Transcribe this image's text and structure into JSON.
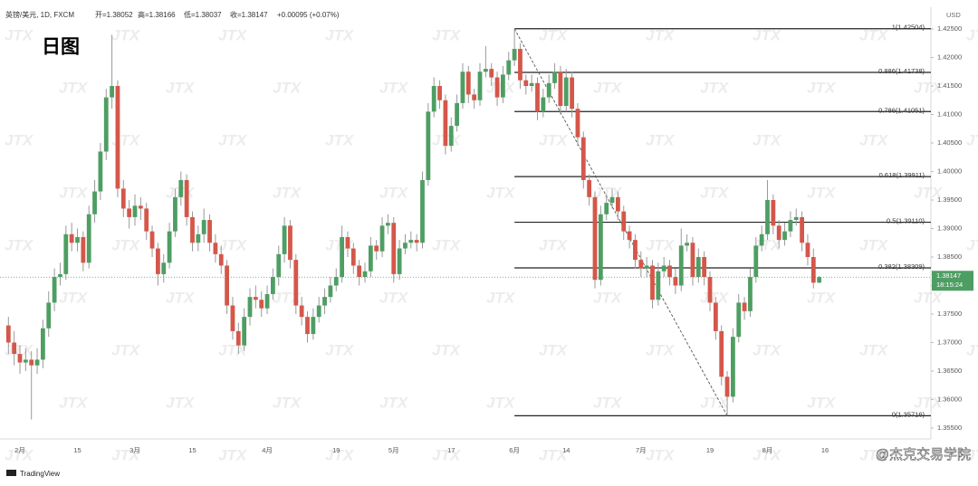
{
  "chart_data": {
    "type": "candlestick",
    "title": "日图",
    "header": {
      "symbol": "英镑/美元, 1D, FXCM",
      "open": "开=1.38052",
      "high": "高=1.38166",
      "low": "低=1.38037",
      "close": "收=1.38147",
      "change": "+0.00095 (+0.07%)"
    },
    "currency": "USD",
    "countdown": "18:15:24",
    "watermark": "JTX",
    "brand": "TradingView",
    "credit": "@杰克交易学院",
    "up_color": "#4e9e63",
    "down_color": "#d4574a",
    "ylim": [
      1.355,
      1.425
    ],
    "yticks": [
      {
        "value": 1.425,
        "label": "1.42500"
      },
      {
        "value": 1.42,
        "label": "1.42000"
      },
      {
        "value": 1.415,
        "label": "1.41500"
      },
      {
        "value": 1.41,
        "label": "1.41000"
      },
      {
        "value": 1.405,
        "label": "1.40500"
      },
      {
        "value": 1.4,
        "label": "1.40000"
      },
      {
        "value": 1.395,
        "label": "1.39500"
      },
      {
        "value": 1.39,
        "label": "1.39000"
      },
      {
        "value": 1.385,
        "label": "1.38500"
      },
      {
        "value": 1.38,
        "label": "1.38000"
      },
      {
        "value": 1.375,
        "label": "1.37500"
      },
      {
        "value": 1.37,
        "label": "1.37000"
      },
      {
        "value": 1.365,
        "label": "1.36500"
      },
      {
        "value": 1.36,
        "label": "1.36000"
      },
      {
        "value": 1.355,
        "label": "1.35500"
      }
    ],
    "fib_levels": [
      {
        "label": "1(1.42504)",
        "value": 1.42504
      },
      {
        "label": "0.886(1.41738)",
        "value": 1.41738
      },
      {
        "label": "0.786(1.41051)",
        "value": 1.41051
      },
      {
        "label": "0.618(1.39911)",
        "value": 1.39911
      },
      {
        "label": "0.5(1.39110)",
        "value": 1.3911
      },
      {
        "label": "0.382(1.38309)",
        "value": 1.38309
      },
      {
        "label": "0(1.35716)",
        "value": 1.35716
      }
    ],
    "categories": [
      null,
      null,
      "2月",
      null,
      null,
      null,
      null,
      null,
      null,
      null,
      null,
      null,
      "15",
      null,
      null,
      null,
      null,
      null,
      null,
      null,
      null,
      null,
      "3月",
      null,
      null,
      null,
      null,
      null,
      null,
      null,
      null,
      null,
      "15",
      null,
      null,
      null,
      null,
      null,
      null,
      null,
      null,
      null,
      null,
      null,
      null,
      "4月",
      null,
      null,
      null,
      null,
      null,
      null,
      null,
      null,
      null,
      null,
      null,
      "19",
      null,
      null,
      null,
      null,
      null,
      null,
      null,
      null,
      null,
      "5月",
      null,
      null,
      null,
      null,
      null,
      null,
      null,
      null,
      null,
      "17",
      null,
      null,
      null,
      null,
      null,
      null,
      null,
      null,
      null,
      null,
      "6月",
      null,
      null,
      null,
      null,
      null,
      null,
      null,
      null,
      "14",
      null,
      null,
      null,
      null,
      null,
      null,
      null,
      null,
      null,
      null,
      null,
      null,
      "7月",
      null,
      null,
      null,
      null,
      null,
      null,
      null,
      null,
      null,
      null,
      null,
      "19",
      null,
      null,
      null,
      null,
      null,
      null,
      null,
      null,
      null,
      "8月",
      null,
      null,
      null,
      null,
      null,
      null,
      null,
      null,
      null,
      "16"
    ],
    "candles": [
      [
        1.373,
        1.3745,
        1.368,
        1.37
      ],
      [
        1.37,
        1.372,
        1.366,
        1.368
      ],
      [
        1.368,
        1.3695,
        1.3645,
        1.3665
      ],
      [
        1.3665,
        1.369,
        1.365,
        1.367
      ],
      [
        1.367,
        1.3685,
        1.3565,
        1.366
      ],
      [
        1.366,
        1.369,
        1.3645,
        1.367
      ],
      [
        1.367,
        1.374,
        1.3655,
        1.3725
      ],
      [
        1.3725,
        1.379,
        1.371,
        1.377
      ],
      [
        1.377,
        1.383,
        1.3755,
        1.3815
      ],
      [
        1.3815,
        1.384,
        1.38,
        1.382
      ],
      [
        1.382,
        1.3905,
        1.381,
        1.389
      ],
      [
        1.389,
        1.391,
        1.386,
        1.3875
      ],
      [
        1.3875,
        1.39,
        1.386,
        1.3885
      ],
      [
        1.3885,
        1.3895,
        1.3825,
        1.384
      ],
      [
        1.384,
        1.394,
        1.383,
        1.3925
      ],
      [
        1.3925,
        1.3985,
        1.391,
        1.3965
      ],
      [
        1.3965,
        1.405,
        1.395,
        1.4035
      ],
      [
        1.4035,
        1.4145,
        1.402,
        1.413
      ],
      [
        1.413,
        1.424,
        1.411,
        1.415
      ],
      [
        1.415,
        1.416,
        1.3955,
        1.397
      ],
      [
        1.397,
        1.3985,
        1.392,
        1.3935
      ],
      [
        1.3935,
        1.395,
        1.39,
        1.392
      ],
      [
        1.392,
        1.396,
        1.3905,
        1.394
      ],
      [
        1.394,
        1.3955,
        1.3915,
        1.3935
      ],
      [
        1.3935,
        1.3945,
        1.388,
        1.3895
      ],
      [
        1.3895,
        1.3905,
        1.385,
        1.3865
      ],
      [
        1.3865,
        1.3875,
        1.38,
        1.382
      ],
      [
        1.382,
        1.3855,
        1.3805,
        1.384
      ],
      [
        1.384,
        1.391,
        1.383,
        1.3895
      ],
      [
        1.3895,
        1.397,
        1.3885,
        1.3955
      ],
      [
        1.3955,
        1.4,
        1.394,
        1.3985
      ],
      [
        1.3985,
        1.3995,
        1.3905,
        1.392
      ],
      [
        1.392,
        1.393,
        1.386,
        1.3875
      ],
      [
        1.3875,
        1.3905,
        1.386,
        1.389
      ],
      [
        1.389,
        1.3935,
        1.3875,
        1.3915
      ],
      [
        1.3915,
        1.3925,
        1.386,
        1.3875
      ],
      [
        1.3875,
        1.389,
        1.384,
        1.3855
      ],
      [
        1.3855,
        1.387,
        1.382,
        1.3835
      ],
      [
        1.3835,
        1.3845,
        1.375,
        1.3765
      ],
      [
        1.3765,
        1.378,
        1.3705,
        1.372
      ],
      [
        1.372,
        1.3735,
        1.368,
        1.3695
      ],
      [
        1.3695,
        1.376,
        1.3685,
        1.3745
      ],
      [
        1.3745,
        1.3795,
        1.373,
        1.378
      ],
      [
        1.378,
        1.38,
        1.376,
        1.3775
      ],
      [
        1.3775,
        1.379,
        1.3745,
        1.376
      ],
      [
        1.376,
        1.38,
        1.375,
        1.3785
      ],
      [
        1.3785,
        1.383,
        1.3775,
        1.3815
      ],
      [
        1.3815,
        1.387,
        1.38,
        1.3855
      ],
      [
        1.3855,
        1.392,
        1.384,
        1.3905
      ],
      [
        1.3905,
        1.3915,
        1.383,
        1.3845
      ],
      [
        1.3845,
        1.3855,
        1.375,
        1.3765
      ],
      [
        1.3765,
        1.378,
        1.373,
        1.3745
      ],
      [
        1.3745,
        1.3755,
        1.37,
        1.3715
      ],
      [
        1.3715,
        1.376,
        1.3705,
        1.3745
      ],
      [
        1.3745,
        1.378,
        1.3735,
        1.3765
      ],
      [
        1.3765,
        1.3795,
        1.375,
        1.378
      ],
      [
        1.378,
        1.3815,
        1.377,
        1.38
      ],
      [
        1.38,
        1.383,
        1.379,
        1.3815
      ],
      [
        1.3815,
        1.3905,
        1.3805,
        1.3885
      ],
      [
        1.3885,
        1.3895,
        1.385,
        1.3865
      ],
      [
        1.3865,
        1.3875,
        1.382,
        1.3835
      ],
      [
        1.3835,
        1.3845,
        1.38,
        1.3815
      ],
      [
        1.3815,
        1.384,
        1.3805,
        1.3825
      ],
      [
        1.3825,
        1.3885,
        1.3815,
        1.387
      ],
      [
        1.387,
        1.388,
        1.3845,
        1.386
      ],
      [
        1.386,
        1.392,
        1.385,
        1.3905
      ],
      [
        1.3905,
        1.3925,
        1.389,
        1.391
      ],
      [
        1.391,
        1.392,
        1.3805,
        1.382
      ],
      [
        1.382,
        1.388,
        1.381,
        1.3865
      ],
      [
        1.3865,
        1.389,
        1.3855,
        1.3875
      ],
      [
        1.3875,
        1.3895,
        1.3865,
        1.388
      ],
      [
        1.388,
        1.389,
        1.386,
        1.3875
      ],
      [
        1.3875,
        1.4,
        1.3865,
        1.3985
      ],
      [
        1.3985,
        1.412,
        1.3975,
        1.4105
      ],
      [
        1.4105,
        1.4165,
        1.4095,
        1.415
      ],
      [
        1.415,
        1.416,
        1.411,
        1.4125
      ],
      [
        1.4125,
        1.4135,
        1.403,
        1.4045
      ],
      [
        1.4045,
        1.4095,
        1.4035,
        1.408
      ],
      [
        1.408,
        1.4135,
        1.407,
        1.412
      ],
      [
        1.412,
        1.419,
        1.411,
        1.4175
      ],
      [
        1.4175,
        1.4185,
        1.412,
        1.4135
      ],
      [
        1.4135,
        1.4145,
        1.411,
        1.4125
      ],
      [
        1.4125,
        1.419,
        1.4115,
        1.4175
      ],
      [
        1.4175,
        1.422,
        1.4165,
        1.418
      ],
      [
        1.418,
        1.419,
        1.415,
        1.4165
      ],
      [
        1.4165,
        1.4175,
        1.4115,
        1.413
      ],
      [
        1.413,
        1.4185,
        1.412,
        1.417
      ],
      [
        1.417,
        1.421,
        1.416,
        1.4195
      ],
      [
        1.4195,
        1.42504,
        1.4185,
        1.4215
      ],
      [
        1.4215,
        1.4225,
        1.4145,
        1.416
      ],
      [
        1.416,
        1.417,
        1.4135,
        1.415
      ],
      [
        1.415,
        1.417,
        1.414,
        1.4155
      ],
      [
        1.4155,
        1.4165,
        1.409,
        1.4105
      ],
      [
        1.4105,
        1.4145,
        1.4095,
        1.413
      ],
      [
        1.413,
        1.417,
        1.412,
        1.4155
      ],
      [
        1.4155,
        1.419,
        1.4145,
        1.4175
      ],
      [
        1.4175,
        1.4185,
        1.41,
        1.4115
      ],
      [
        1.4115,
        1.418,
        1.4105,
        1.4165
      ],
      [
        1.4165,
        1.4175,
        1.4095,
        1.411
      ],
      [
        1.411,
        1.412,
        1.4045,
        1.406
      ],
      [
        1.406,
        1.407,
        1.397,
        1.3985
      ],
      [
        1.3985,
        1.3995,
        1.394,
        1.3955
      ],
      [
        1.3955,
        1.3965,
        1.3795,
        1.381
      ],
      [
        1.381,
        1.394,
        1.38,
        1.3925
      ],
      [
        1.3925,
        1.396,
        1.3915,
        1.3945
      ],
      [
        1.3945,
        1.397,
        1.3935,
        1.3955
      ],
      [
        1.3955,
        1.3965,
        1.3915,
        1.393
      ],
      [
        1.393,
        1.394,
        1.388,
        1.3895
      ],
      [
        1.3895,
        1.3905,
        1.3865,
        1.388
      ],
      [
        1.388,
        1.389,
        1.383,
        1.3845
      ],
      [
        1.3845,
        1.386,
        1.3815,
        1.383
      ],
      [
        1.383,
        1.385,
        1.3815,
        1.3835
      ],
      [
        1.3835,
        1.3845,
        1.376,
        1.3775
      ],
      [
        1.3775,
        1.384,
        1.3765,
        1.3825
      ],
      [
        1.3825,
        1.385,
        1.3815,
        1.3835
      ],
      [
        1.3835,
        1.3845,
        1.38,
        1.3815
      ],
      [
        1.3815,
        1.383,
        1.3785,
        1.38
      ],
      [
        1.38,
        1.39,
        1.379,
        1.387
      ],
      [
        1.387,
        1.389,
        1.386,
        1.3875
      ],
      [
        1.3875,
        1.3885,
        1.38,
        1.3815
      ],
      [
        1.3815,
        1.3865,
        1.3805,
        1.385
      ],
      [
        1.385,
        1.386,
        1.38,
        1.3815
      ],
      [
        1.3815,
        1.3825,
        1.3755,
        1.377
      ],
      [
        1.377,
        1.378,
        1.3705,
        1.372
      ],
      [
        1.372,
        1.373,
        1.3625,
        1.364
      ],
      [
        1.364,
        1.365,
        1.35716,
        1.3605
      ],
      [
        1.3605,
        1.3725,
        1.3595,
        1.371
      ],
      [
        1.371,
        1.3785,
        1.37,
        1.377
      ],
      [
        1.377,
        1.378,
        1.374,
        1.3755
      ],
      [
        1.3755,
        1.383,
        1.3745,
        1.3815
      ],
      [
        1.3815,
        1.3885,
        1.3805,
        1.387
      ],
      [
        1.387,
        1.3905,
        1.386,
        1.389
      ],
      [
        1.389,
        1.3985,
        1.388,
        1.395
      ],
      [
        1.395,
        1.396,
        1.389,
        1.3905
      ],
      [
        1.3905,
        1.3915,
        1.3865,
        1.388
      ],
      [
        1.388,
        1.391,
        1.387,
        1.3895
      ],
      [
        1.3895,
        1.393,
        1.3885,
        1.3915
      ],
      [
        1.3915,
        1.3935,
        1.3905,
        1.392
      ],
      [
        1.392,
        1.393,
        1.386,
        1.3875
      ],
      [
        1.3875,
        1.389,
        1.3835,
        1.385
      ],
      [
        1.385,
        1.3865,
        1.3795,
        1.3805
      ],
      [
        1.38052,
        1.38166,
        1.38037,
        1.38147
      ],
      null
    ]
  }
}
